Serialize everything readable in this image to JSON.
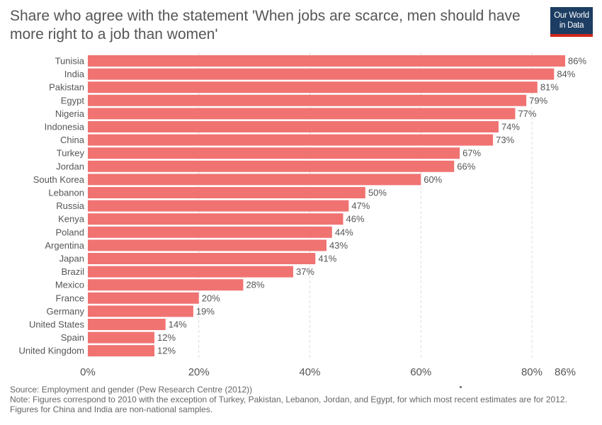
{
  "header": {
    "title": "Share who agree with the statement 'When jobs are scarce, men should have more right to a job than women'",
    "logo_line1": "Our World",
    "logo_line2": "in Data"
  },
  "footer": {
    "source": "Source: Employment and gender (Pew Research Centre (2012))",
    "note": "Note: Figures correspond to 2010 with the exception of Turkey, Pakistan, Lebanon, Jordan, and Egypt, for which most recent estimates are for 2012. Figures for China and India are non-national samples."
  },
  "colors": {
    "bar": "#f07372",
    "grid": "#dddddd",
    "text": "#555555"
  },
  "chart_data": {
    "type": "bar",
    "orientation": "horizontal",
    "categories": [
      "Tunisia",
      "India",
      "Pakistan",
      "Egypt",
      "Nigeria",
      "Indonesia",
      "China",
      "Turkey",
      "Jordan",
      "South Korea",
      "Lebanon",
      "Russia",
      "Kenya",
      "Poland",
      "Argentina",
      "Japan",
      "Brazil",
      "Mexico",
      "France",
      "Germany",
      "United States",
      "Spain",
      "United Kingdom"
    ],
    "values": [
      86,
      84,
      81,
      79,
      77,
      74,
      73,
      67,
      66,
      60,
      50,
      47,
      46,
      44,
      43,
      41,
      37,
      28,
      20,
      19,
      14,
      12,
      12
    ],
    "value_labels": [
      "86%",
      "84%",
      "81%",
      "79%",
      "77%",
      "74%",
      "73%",
      "67%",
      "66%",
      "60%",
      "50%",
      "47%",
      "46%",
      "44%",
      "43%",
      "41%",
      "37%",
      "28%",
      "20%",
      "19%",
      "14%",
      "12%",
      "12%"
    ],
    "xticks": [
      0,
      20,
      40,
      60,
      80,
      86
    ],
    "xtick_labels": [
      "0%",
      "20%",
      "40%",
      "60%",
      "80%",
      "86%"
    ],
    "xlim": [
      0,
      86
    ],
    "grid": true
  }
}
